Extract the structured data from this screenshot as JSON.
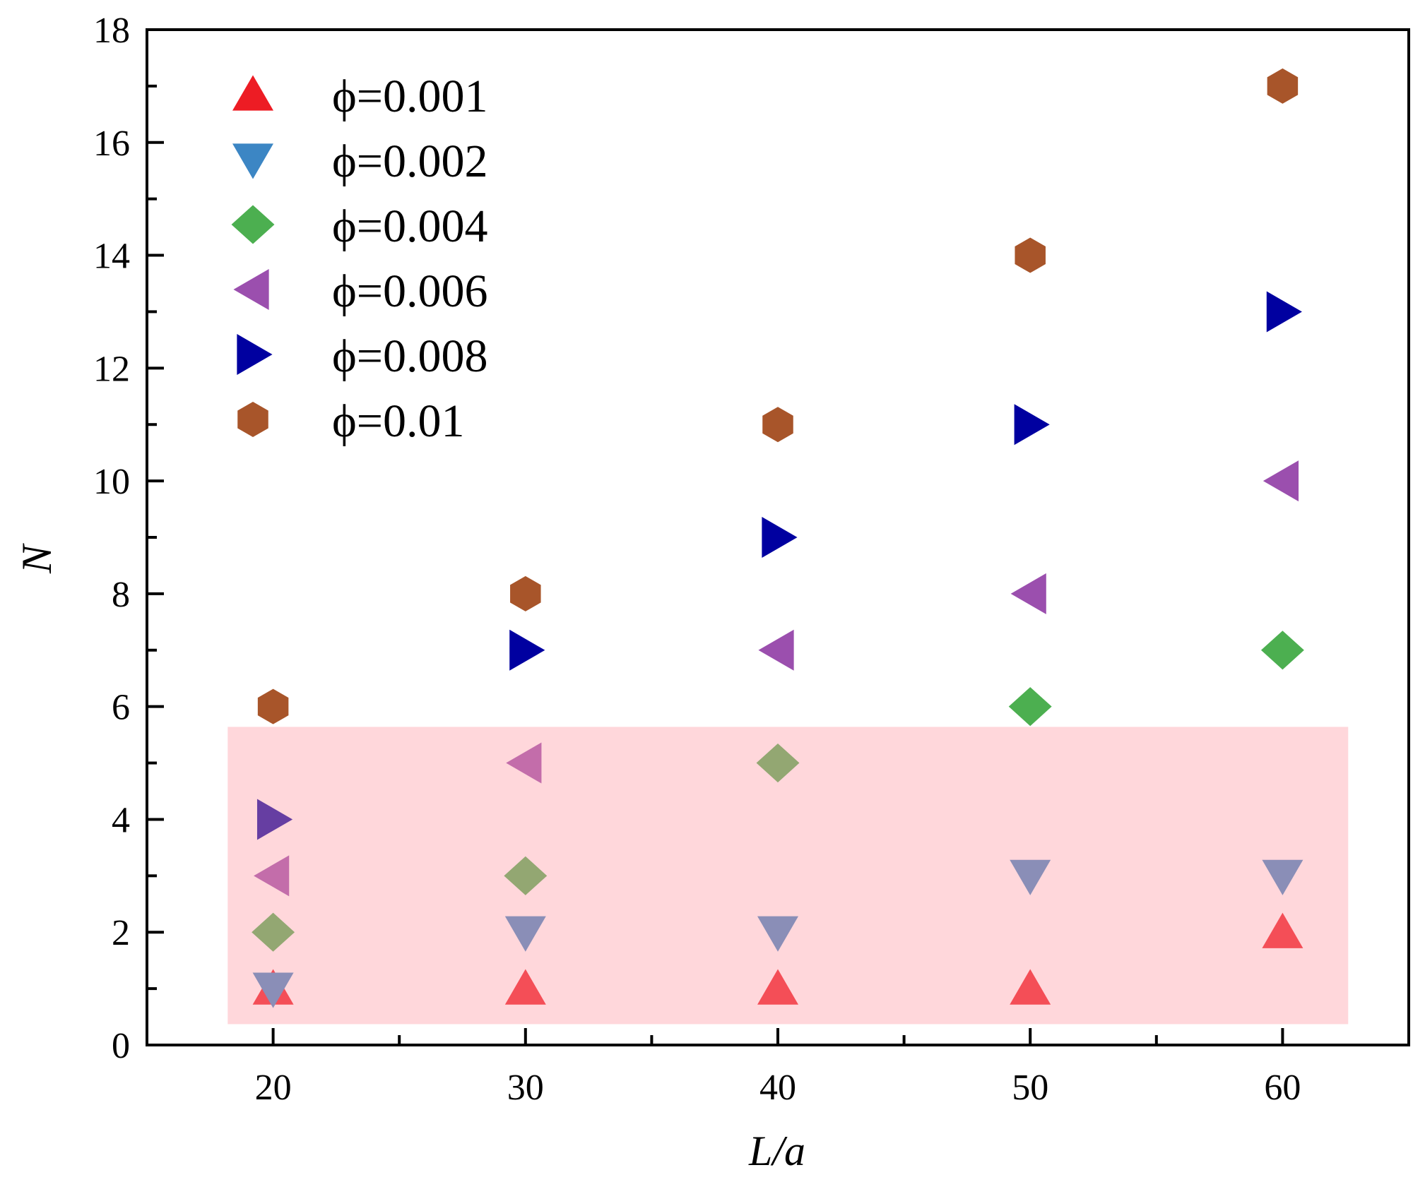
{
  "chart_data": {
    "type": "scatter",
    "title": "",
    "xlabel": "L/a",
    "ylabel": "N",
    "xlim": [
      15,
      65
    ],
    "ylim": [
      0,
      18
    ],
    "xticks": [
      20,
      30,
      40,
      50,
      60
    ],
    "yticks": [
      0,
      2,
      4,
      6,
      8,
      10,
      12,
      14,
      16,
      18
    ],
    "grid": false,
    "legend_position": "top-left",
    "x": [
      20,
      30,
      40,
      50,
      60
    ],
    "series": [
      {
        "name": "ϕ=0.001",
        "marker": "triangle-up",
        "color": "#ED1C24",
        "values": [
          1,
          1,
          1,
          1,
          2
        ]
      },
      {
        "name": "ϕ=0.002",
        "marker": "triangle-down",
        "color": "#3C86C4",
        "values": [
          1,
          2,
          2,
          3,
          3
        ]
      },
      {
        "name": "ϕ=0.004",
        "marker": "diamond",
        "color": "#4CAF50",
        "values": [
          2,
          3,
          5,
          6,
          7
        ]
      },
      {
        "name": "ϕ=0.006",
        "marker": "triangle-left",
        "color": "#9B4FAE",
        "values": [
          3,
          5,
          7,
          8,
          10
        ]
      },
      {
        "name": "ϕ=0.008",
        "marker": "triangle-right",
        "color": "#0000A0",
        "values": [
          4,
          7,
          9,
          11,
          13
        ]
      },
      {
        "name": "ϕ=0.01",
        "marker": "hexagon",
        "color": "#A8552A",
        "values": [
          6,
          8,
          11,
          14,
          17
        ]
      }
    ],
    "highlight_region": {
      "x_range": [
        18.2,
        62.6
      ],
      "y_range": [
        0.37,
        5.64
      ],
      "color": "#FF9AA4"
    }
  }
}
